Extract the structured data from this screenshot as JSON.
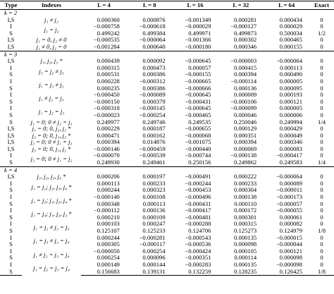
{
  "table": {
    "headers": [
      "Type",
      "Indexes",
      "L = 4",
      "L = 8",
      "L = 16",
      "L = 32",
      "L = 64",
      "Exact"
    ],
    "sections": [
      {
        "label": "k = 2",
        "groups": [
          {
            "indexes": "j₁ ≠ j₂",
            "rows": [
              {
                "type": "I,S",
                "values": [
                  "0.000360",
                  "0.000876",
                  "−0.001349",
                  "0.000281",
                  "0.000434"
                ],
                "exact": "0"
              }
            ]
          },
          {
            "indexes": "j₁ = j₂",
            "rows": [
              {
                "type": "I",
                "values": [
                  "−0.000758",
                  "−0.000618",
                  "−0.000029",
                  "−0.000127",
                  "0.000029"
                ],
                "exact": "0"
              },
              {
                "type": "S",
                "values": [
                  "0.499242",
                  "0.499384",
                  "0.499971",
                  "0.499873",
                  "0.500034"
                ],
                "exact": "1/2"
              }
            ]
          },
          {
            "indexes": "j₁ = 0, j₂ ≠ 0",
            "rows": [
              {
                "type": "I,S",
                "values": [
                  "−0.000535",
                  "−0.000064",
                  "−0.001366",
                  "0.000302",
                  "0.000465"
                ],
                "exact": "0"
              }
            ]
          },
          {
            "indexes": "j₁ ≠ 0, j₂ = 0",
            "rows": [
              {
                "type": "I,S",
                "values": [
                  "−0.001284",
                  "0.000640",
                  "−0.000180",
                  "0.000346",
                  "0.000155"
                ],
                "exact": "0"
              }
            ]
          }
        ]
      },
      {
        "label": "k = 3",
        "groups": [
          {
            "indexes": "j₁, j₂, j₃ *",
            "rows": [
              {
                "type": "I,S",
                "values": [
                  "0.000439",
                  "0.000092",
                  "−0.000645",
                  "−0.000003",
                  "−0.000064"
                ],
                "exact": "0"
              }
            ]
          },
          {
            "indexes": "j₁ = j₂ ≠ j₃",
            "rows": [
              {
                "type": "I",
                "values": [
                  "0.000315",
                  "0.000473",
                  "0.000057",
                  "0.000415",
                  "0.000113"
                ],
                "exact": "0"
              },
              {
                "type": "S",
                "values": [
                  "0.000531",
                  "0.000386",
                  "−0.000155",
                  "0.000394",
                  "0.000490"
                ],
                "exact": "0"
              }
            ]
          },
          {
            "indexes": "j₁ = j₃ ≠ j₂",
            "rows": [
              {
                "type": "I",
                "values": [
                  "0.000228",
                  "−0.000312",
                  "−0.000665",
                  "−0.000114",
                  "0.000005"
                ],
                "exact": "0"
              },
              {
                "type": "S",
                "values": [
                  "0.000235",
                  "0.000386",
                  "−0.000666",
                  "0.000136",
                  "0.000095"
                ],
                "exact": "0"
              }
            ]
          },
          {
            "indexes": "j₁ ≠ j₂ = j₃",
            "rows": [
              {
                "type": "I",
                "values": [
                  "−0.000450",
                  "−0.000089",
                  "−0.000645",
                  "0.000009",
                  "0.000193"
                ],
                "exact": "0"
              },
              {
                "type": "S",
                "values": [
                  "−0.000150",
                  "0.000379",
                  "−0.000431",
                  "−0.000106",
                  "0.000121"
                ],
                "exact": "0"
              }
            ]
          },
          {
            "indexes": "j₁ = j₂ = j₃",
            "rows": [
              {
                "type": "I",
                "values": [
                  "−0.000318",
                  "−0.000145",
                  "−0.000645",
                  "−0.000099",
                  "0.000005"
                ],
                "exact": "0"
              },
              {
                "type": "S",
                "values": [
                  "−0.000023",
                  "−0.000254",
                  "−0.000465",
                  "0.000046",
                  "0.000006"
                ],
                "exact": "0"
              }
            ]
          },
          {
            "indexes": "j₁ = 0; 0 ≠ j₂ = j₃",
            "rows": [
              {
                "type": "S",
                "values": [
                  "0.249977",
                  "0.249746",
                  "0.249535",
                  "0.250046",
                  "0.249994"
                ],
                "exact": "1/4"
              }
            ]
          },
          {
            "indexes": "j₁ = 0; 0, j₂, j₃ *",
            "rows": [
              {
                "type": "I,S",
                "values": [
                  "0.000229",
                  "0.000187",
                  "−0.000655",
                  "0.000129",
                  "0.000429"
                ],
                "exact": "0"
              }
            ]
          },
          {
            "indexes": "j₂ = 0; 0, j₁, j₃ *",
            "rows": [
              {
                "type": "I,S",
                "values": [
                  "0.000471",
                  "0.000162",
                  "−0.000068",
                  "0.000351",
                  "0.000049"
                ],
                "exact": "0"
              }
            ]
          },
          {
            "indexes": "j₂ = 0; 0 ≠ j₁ = j₃",
            "rows": [
              {
                "type": "I,S",
                "values": [
                  "0.000394",
                  "0.014876",
                  "−0.001075",
                  "0.000394",
                  "0.000346"
                ],
                "exact": "0"
              }
            ]
          },
          {
            "indexes": "j₃ = 0; 0, j₁, j₂ *",
            "rows": [
              {
                "type": "I,S",
                "values": [
                  "−0.000146",
                  "−0.000459",
                  "−0.000440",
                  "0.000069",
                  "0.000083"
                ],
                "exact": "0"
              }
            ]
          },
          {
            "indexes": "j₃ = 0; 0 ≠ j₁ = j₂",
            "rows": [
              {
                "type": "I",
                "values": [
                  "−0.000070",
                  "−0.000539",
                  "−0.000744",
                  "−0.000138",
                  "−0.000417"
                ],
                "exact": "0"
              },
              {
                "type": "S",
                "values": [
                  "0.249930",
                  "0.249461",
                  "0.250156",
                  "0.249862",
                  "0.249583"
                ],
                "exact": "1/4"
              }
            ]
          }
        ]
      },
      {
        "label": "k = 4",
        "groups": [
          {
            "indexes": "j₁, j₂, j₃, j₄ *",
            "rows": [
              {
                "type": "I,S",
                "values": [
                  "0.000206",
                  "0.000197",
                  "−0.000491",
                  "0.000222",
                  "−0.000064"
                ],
                "exact": "0"
              }
            ]
          },
          {
            "indexes": "j₁ = j₂; j₂, j₃, j₄ *",
            "rows": [
              {
                "type": "I",
                "values": [
                  "0.000113",
                  "0.000233",
                  "−0.000244",
                  "0.000233",
                  "0.000089"
                ],
                "exact": "0"
              },
              {
                "type": "S",
                "values": [
                  "0.000244",
                  "0.000323",
                  "−0.000453",
                  "0.000304",
                  "−0.000011"
                ],
                "exact": "0"
              }
            ]
          },
          {
            "indexes": "j₁ = j₃; j₁, j₂, j₄ *",
            "rows": [
              {
                "type": "I",
                "values": [
                  "−0.000140",
                  "0.000108",
                  "−0.000496",
                  "0.000138",
                  "−0.000173"
                ],
                "exact": "0"
              },
              {
                "type": "S",
                "values": [
                  "0.000348",
                  "0.000113",
                  "−0.000431",
                  "0.000110",
                  "−0.000057"
                ],
                "exact": "0"
              }
            ]
          },
          {
            "indexes": "j₁ = j₄; j₁, j₂, j₃ *",
            "rows": [
              {
                "type": "I",
                "values": [
                  "−0.000112",
                  "0.000136",
                  "−0.000417",
                  "0.000172",
                  "−0.000055"
                ],
                "exact": "0"
              },
              {
                "type": "S",
                "values": [
                  "0.000210",
                  "0.000109",
                  "−0.000481",
                  "0.000301",
                  "0.000061"
                ],
                "exact": "0"
              }
            ]
          },
          {
            "indexes": "j₁ = j₂ ≠ j₃ = j₄",
            "rows": [
              {
                "type": "I",
                "values": [
                  "0.000103",
                  "0.000247",
                  "−0.000288",
                  "0.000315",
                  "0.000082"
                ],
                "exact": "0"
              },
              {
                "type": "S",
                "values": [
                  "0.125107",
                  "0.125233",
                  "0.124706",
                  "0.125273",
                  "0.124979"
                ],
                "exact": "1/8"
              }
            ]
          },
          {
            "indexes": "j₁ = j₃ ≠ j₂ = j₄",
            "rows": [
              {
                "type": "I",
                "values": [
                  "0.000244",
                  "−0.000281",
                  "−0.000543",
                  "0.000135",
                  "−0.000015"
                ],
                "exact": "0"
              },
              {
                "type": "S",
                "values": [
                  "0.000305",
                  "−0.000117",
                  "−0.000536",
                  "0.000098",
                  "−0.000044"
                ],
                "exact": "0"
              }
            ]
          },
          {
            "indexes": "j₁ ≠ j₂ = j₃ = j₄",
            "rows": [
              {
                "type": "I",
                "values": [
                  "−0.000050",
                  "0.000254",
                  "−0.000424",
                  "0.000105",
                  "0.000121"
                ],
                "exact": "0"
              },
              {
                "type": "S",
                "values": [
                  "0.000254",
                  "0.000096",
                  "−0.000351",
                  "0.000114",
                  "0.000098"
                ],
                "exact": "0"
              }
            ]
          },
          {
            "indexes": "j₁ = j₂ = j₃ = j₄",
            "rows": [
              {
                "type": "I",
                "values": [
                  "0.000149",
                  "0.000144",
                  "−0.000283",
                  "0.000135",
                  "−0.000098"
                ],
                "exact": "0"
              },
              {
                "type": "S",
                "values": [
                  "0.156683",
                  "0.139131",
                  "0.132259",
                  "0.128235",
                  "0.126425"
                ],
                "exact": "1/8"
              }
            ]
          }
        ]
      }
    ]
  }
}
